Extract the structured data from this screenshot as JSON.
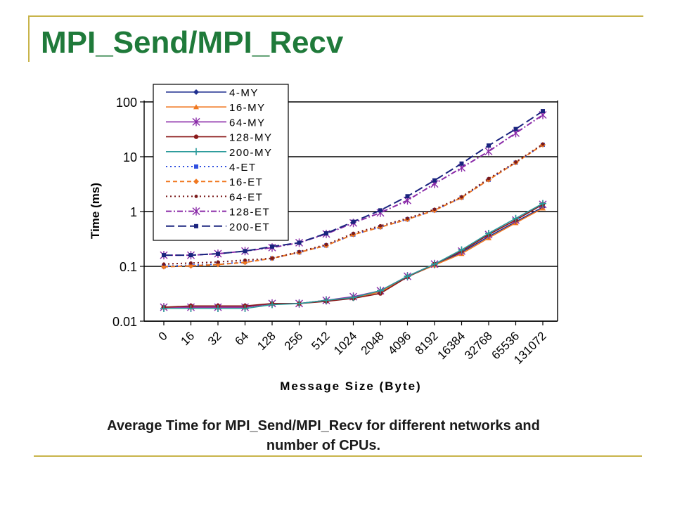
{
  "slide": {
    "title": "MPI_Send/MPI_Recv",
    "caption_line1": "Average Time for MPI_Send/MPI_Recv for different networks and",
    "caption_line2": "number of CPUs."
  },
  "chart_data": {
    "type": "line",
    "xlabel": "Message Size (Byte)",
    "ylabel": "Time (ms)",
    "yscale": "log",
    "ylim": [
      0.01,
      100
    ],
    "yticks": [
      "100",
      "10",
      "1",
      "0.1",
      "0.01"
    ],
    "categories": [
      "0",
      "16",
      "32",
      "64",
      "128",
      "256",
      "512",
      "1024",
      "2048",
      "4096",
      "8192",
      "16384",
      "32768",
      "65536",
      "131072"
    ],
    "grid": "horizontal major gridlines",
    "legend": "top-left, inside plot",
    "series": [
      {
        "name": "4-MY",
        "color": "#1f2f8f",
        "dash": "solid",
        "marker": "diamond",
        "values": [
          0.018,
          0.018,
          0.018,
          0.018,
          0.021,
          0.021,
          0.024,
          0.027,
          0.034,
          0.065,
          0.105,
          0.18,
          0.35,
          0.65,
          1.2
        ]
      },
      {
        "name": "16-MY",
        "color": "#f07820",
        "dash": "solid",
        "marker": "triangle",
        "values": [
          0.018,
          0.018,
          0.018,
          0.018,
          0.021,
          0.021,
          0.024,
          0.027,
          0.034,
          0.065,
          0.105,
          0.17,
          0.33,
          0.62,
          1.15
        ]
      },
      {
        "name": "64-MY",
        "color": "#8a2aa8",
        "dash": "solid",
        "marker": "star",
        "values": [
          0.018,
          0.018,
          0.018,
          0.018,
          0.021,
          0.021,
          0.024,
          0.028,
          0.036,
          0.066,
          0.11,
          0.19,
          0.38,
          0.7,
          1.35
        ]
      },
      {
        "name": "128-MY",
        "color": "#8b1a1a",
        "dash": "solid",
        "marker": "circle",
        "values": [
          0.018,
          0.019,
          0.019,
          0.019,
          0.021,
          0.021,
          0.023,
          0.026,
          0.032,
          0.064,
          0.11,
          0.19,
          0.38,
          0.7,
          1.35
        ]
      },
      {
        "name": "200-MY",
        "color": "#2a9a9a",
        "dash": "solid",
        "marker": "plus",
        "values": [
          0.017,
          0.017,
          0.017,
          0.017,
          0.02,
          0.021,
          0.024,
          0.027,
          0.036,
          0.066,
          0.11,
          0.2,
          0.4,
          0.75,
          1.4
        ]
      },
      {
        "name": "4-ET",
        "color": "#3050e0",
        "dash": "dot",
        "marker": "square",
        "values": [
          0.1,
          0.105,
          0.11,
          0.12,
          0.14,
          0.18,
          0.24,
          0.38,
          0.52,
          0.72,
          1.05,
          1.8,
          3.8,
          7.8,
          16.5
        ]
      },
      {
        "name": "16-ET",
        "color": "#f07820",
        "dash": "dash",
        "marker": "diamond",
        "values": [
          0.098,
          0.102,
          0.108,
          0.118,
          0.14,
          0.18,
          0.24,
          0.38,
          0.52,
          0.72,
          1.05,
          1.8,
          3.8,
          7.8,
          16.5
        ]
      },
      {
        "name": "64-ET",
        "color": "#7a1a1a",
        "dash": "dot",
        "marker": "dot",
        "values": [
          0.11,
          0.115,
          0.12,
          0.13,
          0.14,
          0.185,
          0.25,
          0.4,
          0.55,
          0.75,
          1.1,
          1.85,
          4.0,
          8.0,
          17
        ]
      },
      {
        "name": "128-ET",
        "color": "#8a2aa8",
        "dash": "dashdot",
        "marker": "star",
        "values": [
          0.16,
          0.16,
          0.17,
          0.19,
          0.22,
          0.27,
          0.39,
          0.62,
          0.95,
          1.6,
          3.2,
          6.3,
          12.5,
          27,
          58
        ]
      },
      {
        "name": "200-ET",
        "color": "#1a237e",
        "dash": "longdash",
        "marker": "square",
        "values": [
          0.16,
          0.16,
          0.17,
          0.19,
          0.23,
          0.27,
          0.4,
          0.65,
          1.05,
          1.9,
          3.7,
          7.5,
          16,
          32,
          68
        ]
      }
    ]
  }
}
